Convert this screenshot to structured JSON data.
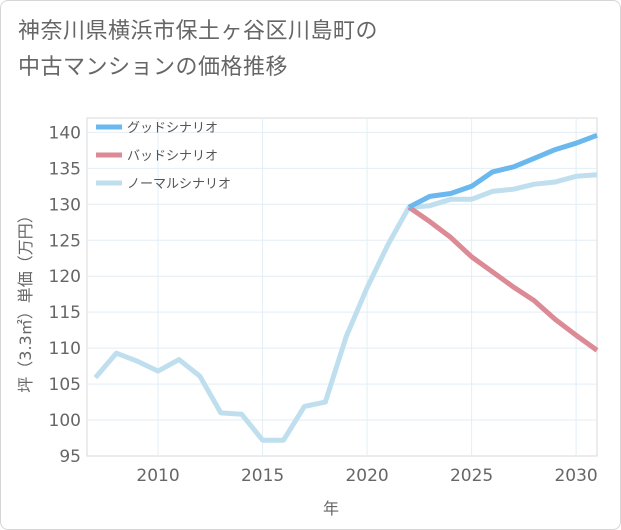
{
  "title_line1": "神奈川県横浜市保土ヶ谷区川島町の",
  "title_line2": "中古マンションの価格推移",
  "chart_data": {
    "type": "line",
    "xlabel": "年",
    "ylabel": "坪（3.3㎡）単価（万円）",
    "xlim": [
      2006.6,
      2031
    ],
    "ylim": [
      95,
      142
    ],
    "x_ticks": [
      2010,
      2015,
      2020,
      2025,
      2030
    ],
    "y_ticks": [
      95,
      100,
      105,
      110,
      115,
      120,
      125,
      130,
      135,
      140
    ],
    "grid": true,
    "legend_position": "top-left",
    "series": [
      {
        "name": "グッドシナリオ",
        "color": "#6ab8ee",
        "x": [
          2022,
          2023,
          2024,
          2025,
          2026,
          2027,
          2028,
          2029,
          2030,
          2031
        ],
        "y": [
          129.6,
          131.1,
          131.5,
          132.5,
          134.5,
          135.2,
          136.4,
          137.6,
          138.5,
          139.6
        ]
      },
      {
        "name": "バッドシナリオ",
        "color": "#dc8a95",
        "x": [
          2022,
          2023,
          2024,
          2025,
          2026,
          2027,
          2028,
          2029,
          2030,
          2031
        ],
        "y": [
          129.6,
          127.6,
          125.4,
          122.7,
          120.6,
          118.5,
          116.6,
          114.0,
          111.8,
          109.7
        ]
      },
      {
        "name": "ノーマルシナリオ",
        "color": "#bfdfef",
        "x": [
          2007,
          2008,
          2009,
          2010,
          2011,
          2012,
          2013,
          2014,
          2015,
          2016,
          2017,
          2018,
          2019,
          2020,
          2021,
          2022,
          2023,
          2024,
          2025,
          2026,
          2027,
          2028,
          2029,
          2030,
          2031
        ],
        "y": [
          105.9,
          109.3,
          108.2,
          106.8,
          108.4,
          106.1,
          101.0,
          100.8,
          97.2,
          97.2,
          101.9,
          102.5,
          111.6,
          118.4,
          124.4,
          129.6,
          129.8,
          130.7,
          130.7,
          131.8,
          132.1,
          132.8,
          133.1,
          133.9,
          134.1
        ]
      }
    ]
  }
}
